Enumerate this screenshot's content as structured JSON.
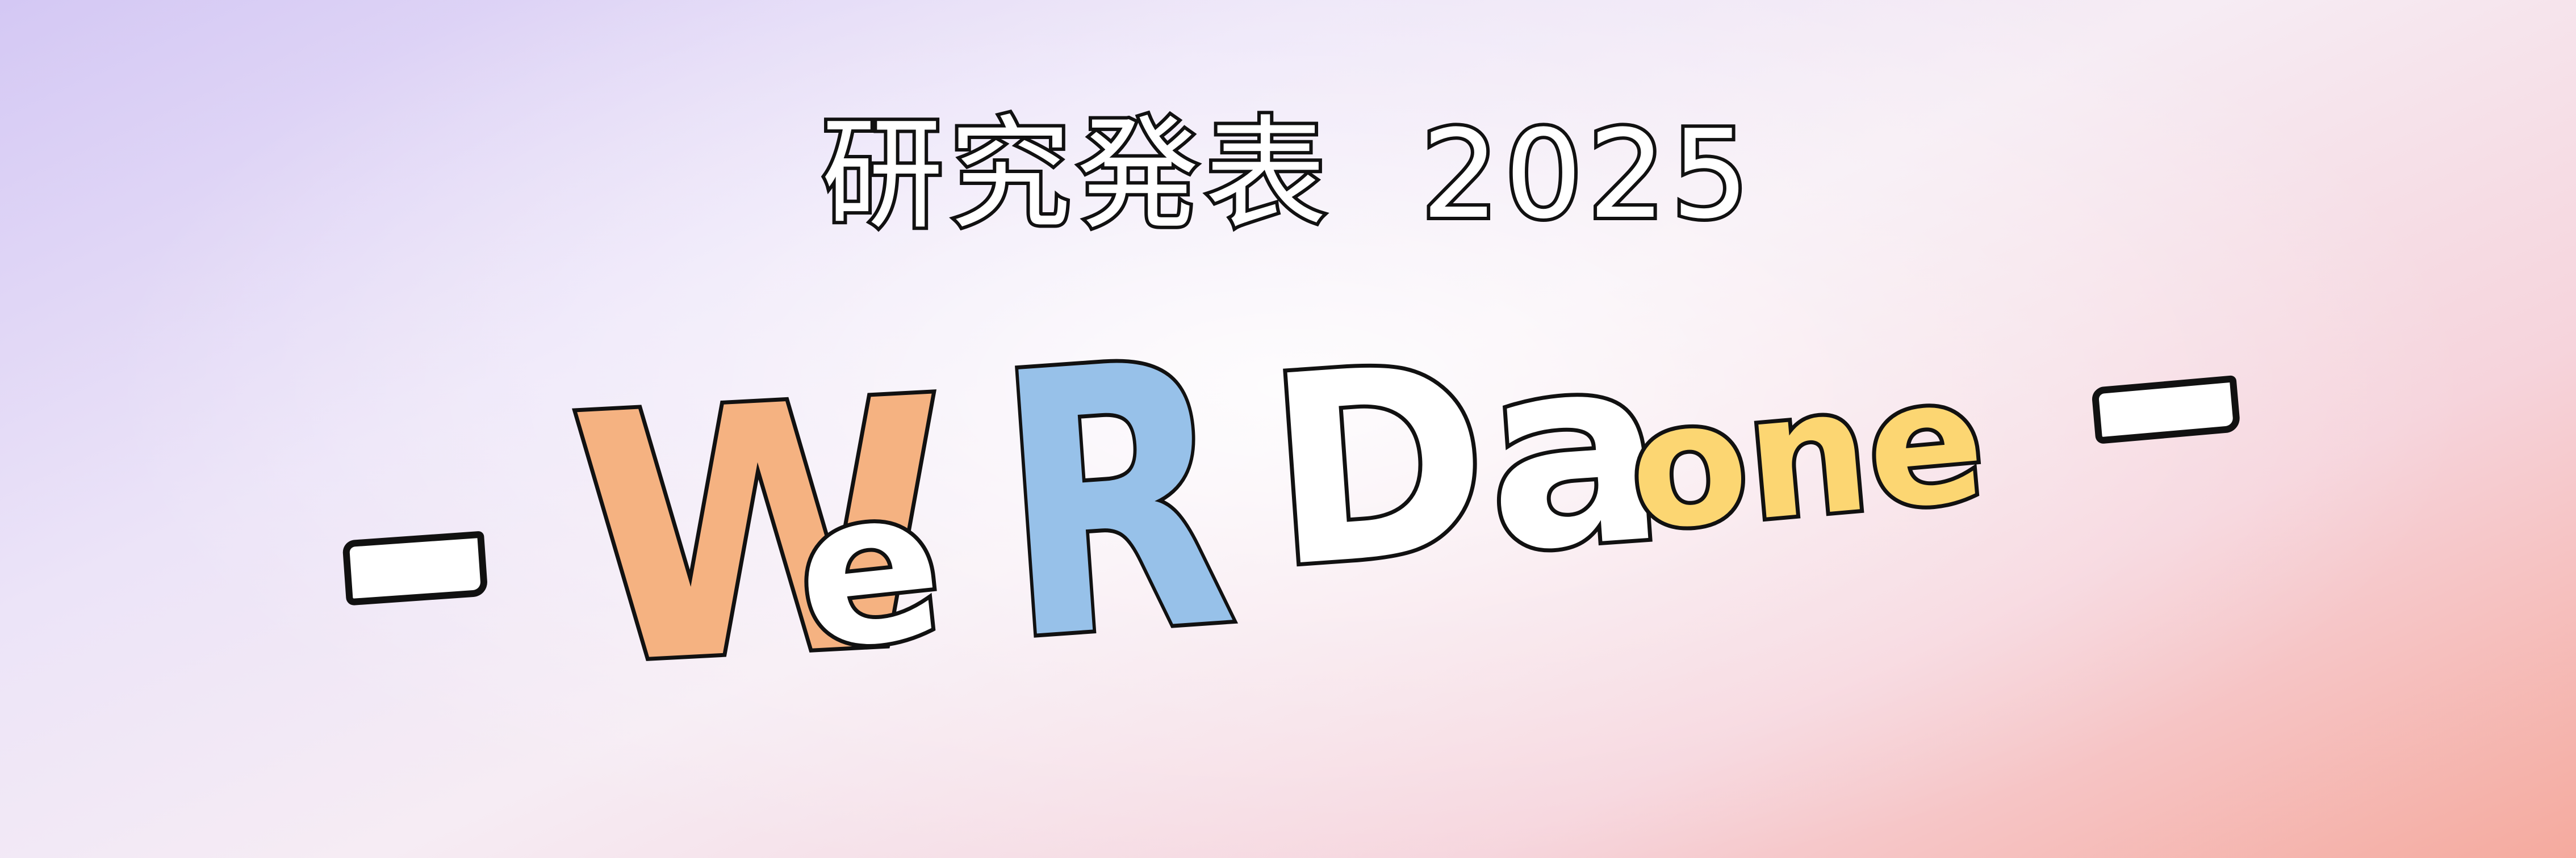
{
  "banner": {
    "heading": "研究発表  2025",
    "title": {
      "word1_char1": "W",
      "word1_char2": "e",
      "word2": "R",
      "word3": "Da",
      "word4": "one"
    }
  },
  "colors": {
    "background_start": "#d4c8f4",
    "background_end": "#f5aa9e",
    "outline": "#111111",
    "W_fill": "#f5b281",
    "R_fill": "#97c1e9",
    "one_fill": "#fcd672",
    "white_fill": "#ffffff"
  }
}
